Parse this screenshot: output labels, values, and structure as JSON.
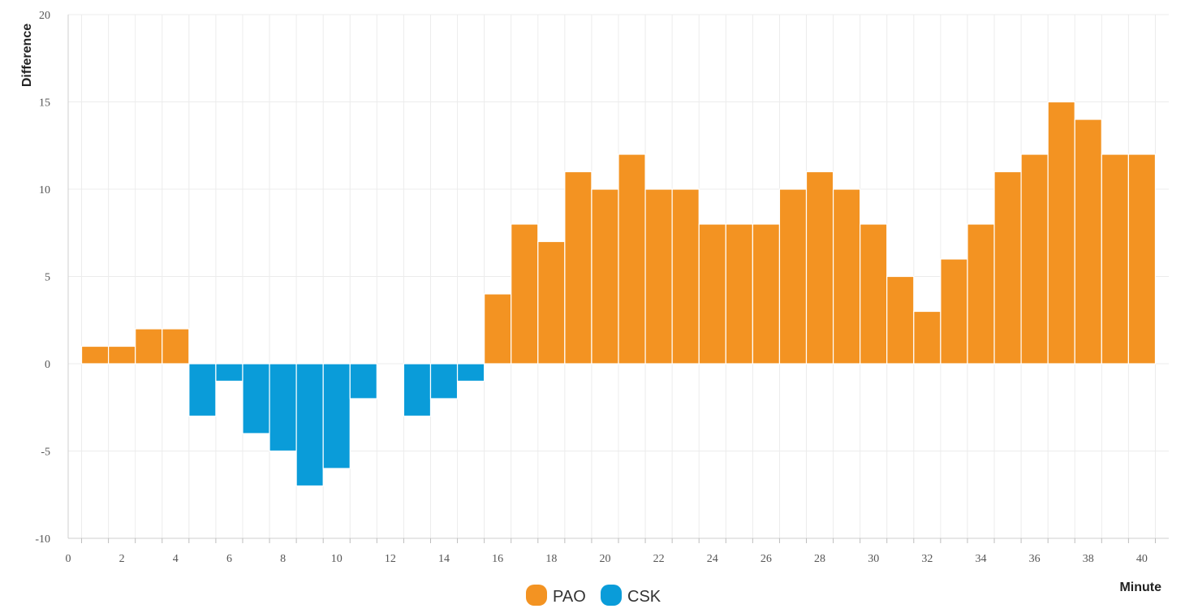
{
  "chart_data": {
    "type": "bar",
    "xlabel": "Minute",
    "ylabel": "Difference",
    "ylim": [
      -10,
      20
    ],
    "xlim": [
      0,
      41
    ],
    "y_ticks": [
      "20",
      "15",
      "10",
      "5",
      "0",
      "-5",
      "-10"
    ],
    "x_ticks": [
      "0",
      "2",
      "4",
      "6",
      "8",
      "10",
      "12",
      "14",
      "16",
      "18",
      "20",
      "22",
      "24",
      "26",
      "28",
      "30",
      "32",
      "34",
      "36",
      "38",
      "40"
    ],
    "grid": true,
    "legend_position": "bottom-center",
    "series": [
      {
        "name": "PAO",
        "color": "#F39322"
      },
      {
        "name": "CSK",
        "color": "#0A9CD9"
      }
    ],
    "x": [
      1,
      2,
      3,
      4,
      5,
      6,
      7,
      8,
      9,
      10,
      11,
      12,
      13,
      14,
      15,
      16,
      17,
      18,
      19,
      20,
      21,
      22,
      23,
      24,
      25,
      26,
      27,
      28,
      29,
      30,
      31,
      32,
      33,
      34,
      35,
      36,
      37,
      38,
      39,
      40
    ],
    "values": [
      1,
      1,
      2,
      2,
      -3,
      -1,
      -4,
      -5,
      -7,
      -6,
      -2,
      0,
      -3,
      -2,
      -1,
      4,
      8,
      7,
      11,
      10,
      12,
      10,
      10,
      8,
      8,
      8,
      10,
      11,
      10,
      8,
      5,
      3,
      6,
      8,
      11,
      12,
      15,
      14,
      12,
      12
    ]
  }
}
